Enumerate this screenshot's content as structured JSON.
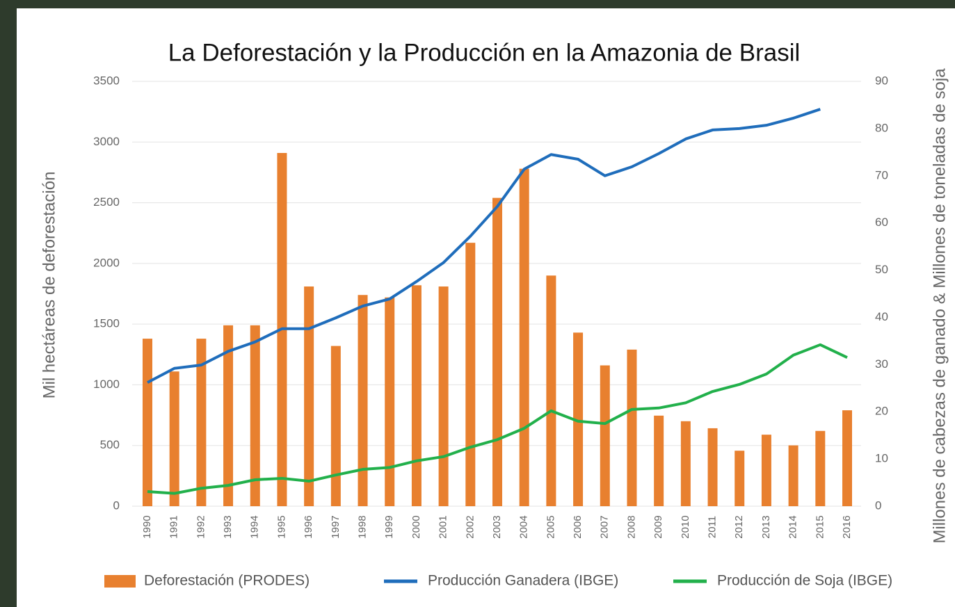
{
  "chart_data": {
    "type": "bar",
    "title": "La Deforestación y la Producción en la Amazonia de Brasil",
    "y_label": "Mil hectáreas de deforestación",
    "y2_label": "Millones de cabezas de ganado & Millones de toneladas de soja",
    "categories": [
      "1990",
      "1991",
      "1992",
      "1993",
      "1994",
      "1995",
      "1996",
      "1997",
      "1998",
      "1999",
      "2000",
      "2001",
      "2002",
      "2003",
      "2004",
      "2005",
      "2006",
      "2007",
      "2008",
      "2009",
      "2010",
      "2011",
      "2012",
      "2013",
      "2014",
      "2015",
      "2016"
    ],
    "series": [
      {
        "name": "Deforestación (PRODES)",
        "type": "bar",
        "axis": "y",
        "color": "#e8802f",
        "values": [
          1380,
          1110,
          1380,
          1490,
          1490,
          2910,
          1810,
          1320,
          1740,
          1720,
          1820,
          1810,
          2170,
          2540,
          2780,
          1900,
          1430,
          1160,
          1290,
          746,
          700,
          642,
          457,
          589,
          501,
          620,
          790
        ]
      },
      {
        "name": "Producción Ganadera (IBGE)",
        "type": "line",
        "axis": "y2",
        "color": "#1f6dbb",
        "values": [
          26.2,
          29.2,
          29.9,
          32.8,
          34.8,
          37.6,
          37.6,
          39.9,
          42.4,
          43.9,
          47.6,
          51.6,
          57.2,
          63.5,
          71.4,
          74.5,
          73.5,
          70,
          71.9,
          74.7,
          77.8,
          79.7,
          80,
          80.7,
          82.2,
          84.1,
          null
        ]
      },
      {
        "name": "Producción de Soja (IBGE)",
        "type": "line",
        "axis": "y2",
        "color": "#22b04b",
        "values": [
          3.1,
          2.7,
          3.8,
          4.4,
          5.6,
          5.9,
          5.3,
          6.6,
          7.8,
          8.2,
          9.6,
          10.5,
          12.5,
          14.1,
          16.5,
          20.2,
          18,
          17.5,
          20.5,
          20.8,
          21.9,
          24.3,
          25.8,
          28,
          32,
          34.2,
          31.5
        ]
      }
    ],
    "ylim": [
      0,
      3500
    ],
    "yticks": [
      0,
      500,
      1000,
      1500,
      2000,
      2500,
      3000,
      3500
    ],
    "y2lim": [
      0,
      90
    ],
    "y2ticks": [
      0,
      10,
      20,
      30,
      40,
      50,
      60,
      70,
      80,
      90
    ],
    "grid": true,
    "legend": "bottom"
  }
}
